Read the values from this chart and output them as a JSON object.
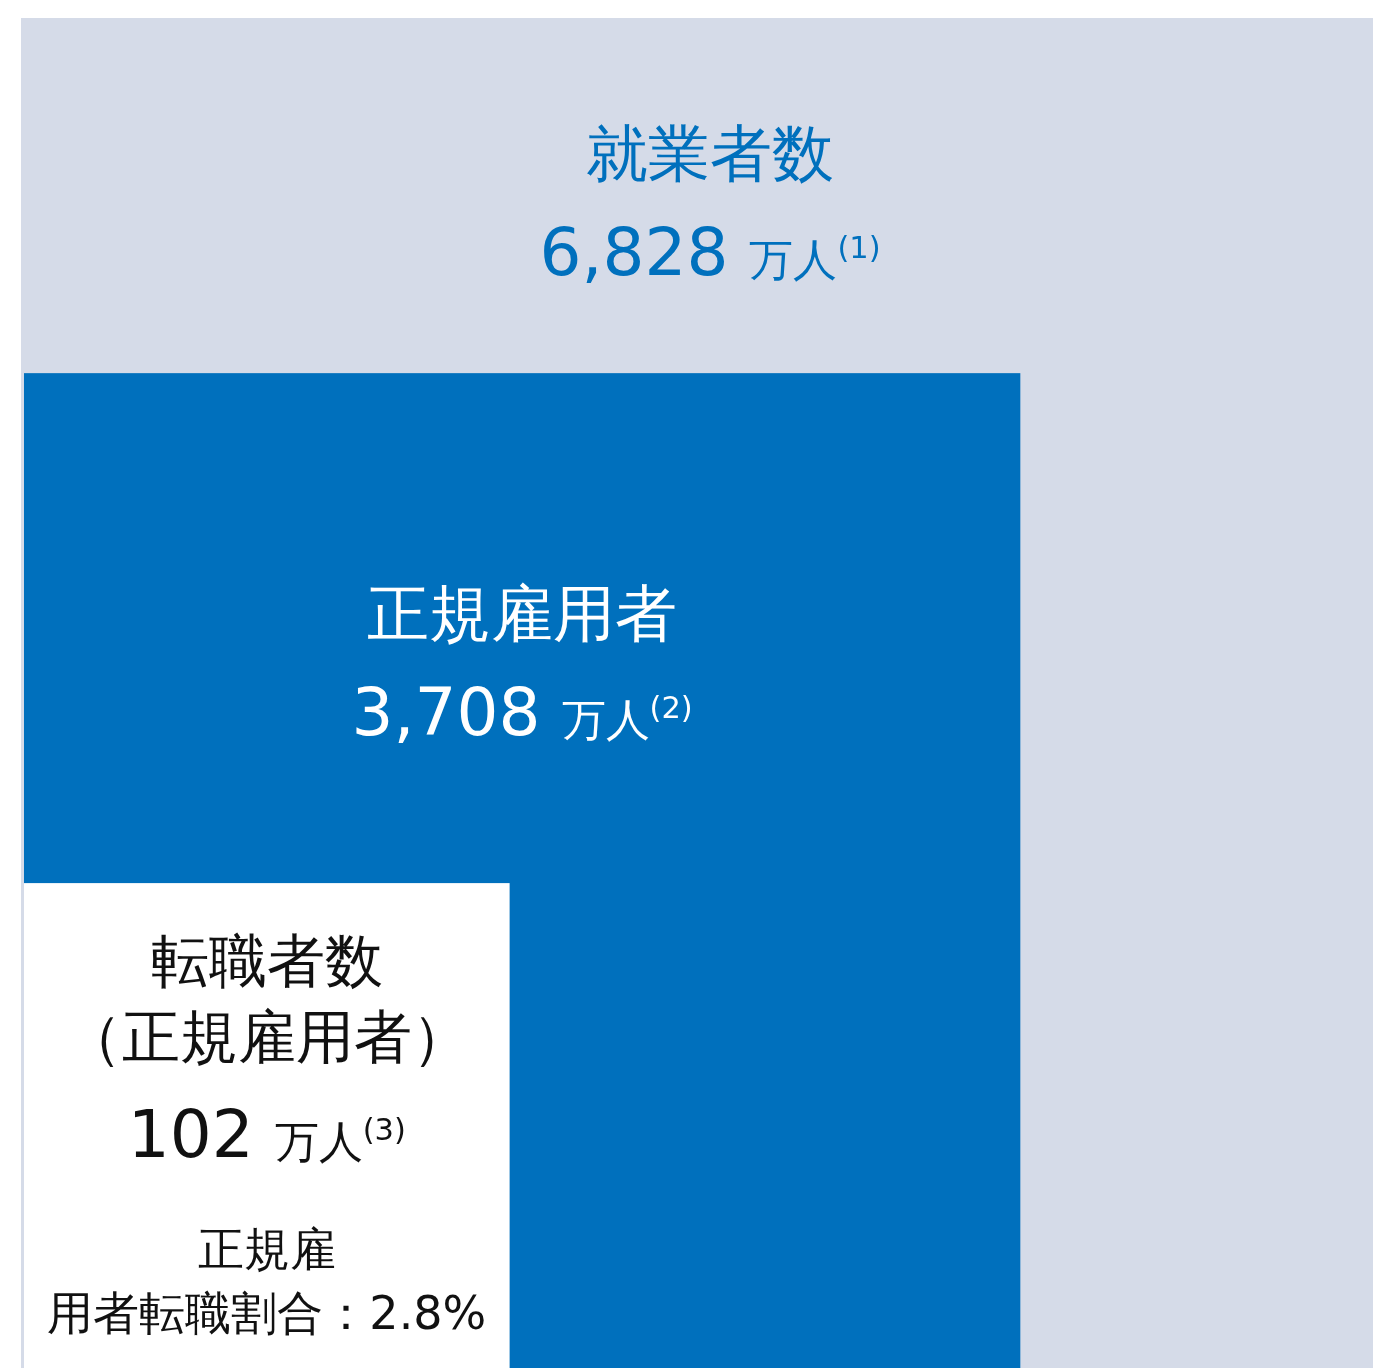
{
  "chart_data": {
    "type": "other",
    "categories": [
      "就業者数",
      "正規雇用者",
      "転職者数（正規雇用者）"
    ],
    "values": [
      6828,
      3708,
      102
    ],
    "value_labels": [
      "6,828 万人$^{(1)}$",
      "3,708 万人$^{(2)}$",
      "102 万人$^{(3)}$"
    ],
    "colors": [
      "#d5dbe8",
      "#0070bd",
      "#ffffff"
    ],
    "annotations": [
      "正規雇用者転職割合：2.8%"
    ]
  }
}
